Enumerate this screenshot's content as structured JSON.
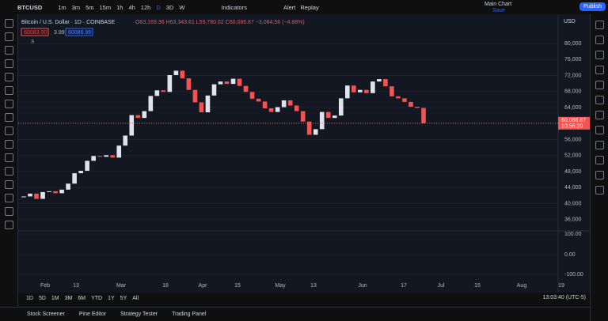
{
  "header": {
    "symbol": "BTCUSD",
    "intervals": [
      "1m",
      "3m",
      "5m",
      "15m",
      "1h",
      "4h",
      "12h",
      "D",
      "3D",
      "W"
    ],
    "indicators": "Indicators",
    "alert": "Alert",
    "replay": "Replay",
    "layout_name": "Main Chart",
    "layout_status": "Save",
    "publish": "Publish"
  },
  "legend": {
    "title": "Bitcoin / U.S. Dollar · 1D · COINBASE",
    "ohlc": "O63,169.36 H63,343.61 L59,780.02 C60,086.87 −3,084.56 (−4.88%)",
    "bid": "60083.00",
    "spread": "3.99",
    "ask": "60086.99",
    "indicator_count": "3"
  },
  "chart_data": {
    "type": "candlestick",
    "currency": "USD",
    "closes": [
      41800,
      42500,
      41200,
      42900,
      43100,
      42600,
      43500,
      45000,
      47600,
      48200,
      50700,
      51900,
      51700,
      52100,
      51500,
      54500,
      57000,
      62100,
      61400,
      63100,
      66900,
      68300,
      67900,
      72100,
      73200,
      71300,
      68400,
      65300,
      62800,
      67000,
      69800,
      70500,
      69900,
      71200,
      69400,
      67900,
      66200,
      65500,
      63800,
      62900,
      64100,
      65800,
      64500,
      63100,
      60500,
      57200,
      58600,
      62900,
      61400,
      62000,
      66300,
      69500,
      67800,
      68400,
      67600,
      70500,
      71100,
      69300,
      66800,
      66300,
      65400,
      64200,
      63900,
      60086.87
    ],
    "up_color": "#e0e3eb",
    "down_color": "#f05454",
    "ylim": [
      33600,
      87300
    ],
    "yticks": [
      {
        "value": 36000,
        "label": "36,000"
      },
      {
        "value": 40000,
        "label": "40,000"
      },
      {
        "value": 44000,
        "label": "44,000"
      },
      {
        "value": 48000,
        "label": "48,000"
      },
      {
        "value": 52000,
        "label": "52,000"
      },
      {
        "value": 56000,
        "label": "56,000"
      },
      {
        "value": 60000,
        "label": "60,000"
      },
      {
        "value": 64000,
        "label": "64,000"
      },
      {
        "value": 68000,
        "label": "68,000"
      },
      {
        "value": 72000,
        "label": "72,000"
      },
      {
        "value": 76000,
        "label": "76,000"
      },
      {
        "value": 80000,
        "label": "80,000"
      }
    ],
    "last_price": {
      "value": 60086.87,
      "label": "60,086.87"
    },
    "countdown": "10:56:20",
    "time_labels": [
      "Feb",
      "13",
      "Mar",
      "18",
      "Apr",
      "15",
      "May",
      "13",
      "Jun",
      "17",
      "Jul",
      "15",
      "Aug",
      "19"
    ],
    "oscillator_ticks": [
      "100.00",
      "0.00",
      "-100.00"
    ],
    "grid": true
  },
  "footer": {
    "ranges": [
      "1D",
      "5D",
      "1M",
      "3M",
      "6M",
      "YTD",
      "1Y",
      "5Y",
      "All"
    ],
    "clock": "13:03:40 (UTC-5)",
    "tabs": [
      "Stock Screener",
      "Pine Editor",
      "Strategy Tester",
      "Trading Panel"
    ]
  }
}
